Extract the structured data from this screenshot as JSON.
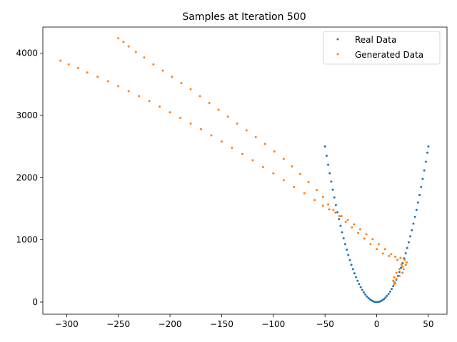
{
  "chart_data": {
    "type": "scatter",
    "title": "Samples at Iteration 500",
    "xlabel": "",
    "ylabel": "",
    "xlim": [
      -323,
      68
    ],
    "ylim": [
      -195,
      4420
    ],
    "xticks": [
      -300,
      -250,
      -200,
      -150,
      -100,
      -50,
      0,
      50
    ],
    "yticks": [
      0,
      1000,
      2000,
      3000,
      4000
    ],
    "grid": false,
    "legend_position": "top-right",
    "series": [
      {
        "name": "Real Data",
        "color": "#1f77b4",
        "marker_size": 1.5,
        "points": [
          [
            -50,
            2500
          ],
          [
            -48.5,
            2352
          ],
          [
            -47,
            2209
          ],
          [
            -45.5,
            2070
          ],
          [
            -44,
            1936
          ],
          [
            -42.5,
            1806
          ],
          [
            -41,
            1681
          ],
          [
            -39.5,
            1560
          ],
          [
            -38,
            1444
          ],
          [
            -36.5,
            1332
          ],
          [
            -35,
            1225
          ],
          [
            -33.5,
            1122
          ],
          [
            -32,
            1024
          ],
          [
            -30.5,
            930
          ],
          [
            -29,
            841
          ],
          [
            -27.5,
            756
          ],
          [
            -26,
            676
          ],
          [
            -24.5,
            600
          ],
          [
            -23,
            529
          ],
          [
            -21.5,
            462
          ],
          [
            -20,
            400
          ],
          [
            -18.5,
            342
          ],
          [
            -17,
            289
          ],
          [
            -15.5,
            240
          ],
          [
            -14,
            196
          ],
          [
            -12.5,
            156
          ],
          [
            -11,
            121
          ],
          [
            -9.5,
            90
          ],
          [
            -8,
            64
          ],
          [
            -6.5,
            42
          ],
          [
            -5,
            25
          ],
          [
            -3.5,
            12
          ],
          [
            -2,
            4
          ],
          [
            -0.5,
            0
          ],
          [
            1,
            1
          ],
          [
            2.5,
            6
          ],
          [
            4,
            16
          ],
          [
            5.5,
            30
          ],
          [
            7,
            49
          ],
          [
            8.5,
            72
          ],
          [
            10,
            100
          ],
          [
            11.5,
            132
          ],
          [
            13,
            169
          ],
          [
            14.5,
            210
          ],
          [
            16,
            256
          ],
          [
            17.5,
            306
          ],
          [
            19,
            361
          ],
          [
            20.5,
            420
          ],
          [
            22,
            484
          ],
          [
            23.5,
            552
          ],
          [
            25,
            625
          ],
          [
            26.5,
            702
          ],
          [
            28,
            784
          ],
          [
            29.5,
            870
          ],
          [
            31,
            961
          ],
          [
            32.5,
            1056
          ],
          [
            34,
            1156
          ],
          [
            35.5,
            1260
          ],
          [
            37,
            1369
          ],
          [
            38.5,
            1482
          ],
          [
            40,
            1600
          ],
          [
            41.5,
            1722
          ],
          [
            43,
            1849
          ],
          [
            44.5,
            1980
          ],
          [
            46,
            2116
          ],
          [
            47.5,
            2256
          ],
          [
            49,
            2401
          ],
          [
            50,
            2500
          ]
        ]
      },
      {
        "name": "Generated Data",
        "color": "#ff7f0e",
        "marker_size": 1.5,
        "points": [
          [
            -250,
            4240
          ],
          [
            -245,
            4180
          ],
          [
            -240,
            4110
          ],
          [
            -233,
            4020
          ],
          [
            -225,
            3930
          ],
          [
            -216,
            3820
          ],
          [
            -207,
            3720
          ],
          [
            -198,
            3620
          ],
          [
            -189,
            3520
          ],
          [
            -180,
            3420
          ],
          [
            -171,
            3310
          ],
          [
            -162,
            3200
          ],
          [
            -153,
            3090
          ],
          [
            -144,
            2980
          ],
          [
            -135,
            2870
          ],
          [
            -126,
            2760
          ],
          [
            -117,
            2650
          ],
          [
            -108,
            2540
          ],
          [
            -99,
            2420
          ],
          [
            -90,
            2300
          ],
          [
            -82,
            2180
          ],
          [
            -74,
            2060
          ],
          [
            -66,
            1930
          ],
          [
            -58,
            1800
          ],
          [
            -52,
            1690
          ],
          [
            -47,
            1570
          ],
          [
            -42,
            1480
          ],
          [
            -36,
            1380
          ],
          [
            -30,
            1290
          ],
          [
            -24,
            1200
          ],
          [
            -18,
            1110
          ],
          [
            -12,
            1020
          ],
          [
            -6,
            930
          ],
          [
            0,
            850
          ],
          [
            6,
            780
          ],
          [
            12,
            740
          ],
          [
            18,
            730
          ],
          [
            23,
            710
          ],
          [
            27,
            680
          ],
          [
            29,
            640
          ],
          [
            28,
            600
          ],
          [
            25,
            570
          ],
          [
            22,
            530
          ],
          [
            19,
            470
          ],
          [
            17,
            400
          ],
          [
            16,
            340
          ],
          [
            17,
            290
          ],
          [
            -306,
            3880
          ],
          [
            -298,
            3820
          ],
          [
            -289,
            3760
          ],
          [
            -280,
            3690
          ],
          [
            -270,
            3620
          ],
          [
            -260,
            3550
          ],
          [
            -250,
            3470
          ],
          [
            -240,
            3390
          ],
          [
            -230,
            3310
          ],
          [
            -220,
            3230
          ],
          [
            -210,
            3140
          ],
          [
            -200,
            3050
          ],
          [
            -190,
            2960
          ],
          [
            -180,
            2870
          ],
          [
            -170,
            2780
          ],
          [
            -160,
            2680
          ],
          [
            -150,
            2580
          ],
          [
            -140,
            2480
          ],
          [
            -130,
            2380
          ],
          [
            -120,
            2280
          ],
          [
            -110,
            2170
          ],
          [
            -100,
            2070
          ],
          [
            -90,
            1960
          ],
          [
            -80,
            1850
          ],
          [
            -70,
            1750
          ],
          [
            -60,
            1640
          ],
          [
            -52,
            1550
          ],
          [
            -46,
            1490
          ],
          [
            -40,
            1440
          ],
          [
            -34,
            1380
          ],
          [
            -28,
            1320
          ],
          [
            -22,
            1250
          ],
          [
            -16,
            1170
          ],
          [
            -10,
            1090
          ],
          [
            -4,
            1010
          ],
          [
            2,
            930
          ],
          [
            8,
            850
          ],
          [
            14,
            770
          ],
          [
            20,
            680
          ],
          [
            24,
            600
          ],
          [
            26,
            530
          ],
          [
            25,
            470
          ],
          [
            22,
            420
          ],
          [
            19,
            370
          ],
          [
            17,
            320
          ]
        ]
      }
    ]
  }
}
